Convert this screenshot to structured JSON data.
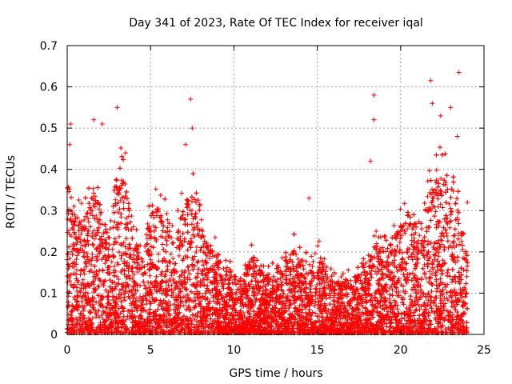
{
  "chart_data": {
    "type": "scatter",
    "title": "Day 341 of 2023, Rate Of TEC Index for receiver iqal",
    "xlabel": "GPS time / hours",
    "ylabel": "ROTI / TECUs",
    "xlim": [
      0,
      25
    ],
    "ylim": [
      0,
      0.7
    ],
    "x_ticks": [
      0,
      5,
      10,
      15,
      20,
      25
    ],
    "y_ticks": [
      0,
      0.1,
      0.2,
      0.3,
      0.4,
      0.5,
      0.6,
      0.7
    ],
    "x_tick_labels": [
      "0",
      "5",
      "10",
      "15",
      "20",
      "25"
    ],
    "y_tick_labels": [
      "0",
      "0.1",
      "0.2",
      "0.3",
      "0.4",
      "0.5",
      "0.6",
      "0.7"
    ],
    "grid": true,
    "marker": "+",
    "color": "#ff0000",
    "envelope": {
      "description_hours": [
        0,
        0.5,
        1,
        1.5,
        2,
        2.5,
        3,
        3.5,
        4,
        4.5,
        5,
        5.5,
        6,
        6.5,
        7,
        7.5,
        8,
        8.5,
        9,
        9.5,
        10,
        10.5,
        11,
        11.5,
        12,
        12.5,
        13,
        13.5,
        14,
        14.5,
        15,
        15.5,
        16,
        16.5,
        17,
        17.5,
        18,
        18.5,
        19,
        19.5,
        20,
        20.5,
        21,
        21.5,
        22,
        22.5,
        23,
        23.5,
        24
      ],
      "typical_max_roti": [
        0.3,
        0.28,
        0.25,
        0.35,
        0.3,
        0.25,
        0.38,
        0.35,
        0.22,
        0.2,
        0.28,
        0.3,
        0.25,
        0.22,
        0.3,
        0.35,
        0.25,
        0.22,
        0.18,
        0.15,
        0.14,
        0.13,
        0.18,
        0.15,
        0.14,
        0.14,
        0.16,
        0.2,
        0.18,
        0.15,
        0.2,
        0.15,
        0.12,
        0.12,
        0.13,
        0.14,
        0.18,
        0.22,
        0.2,
        0.22,
        0.25,
        0.28,
        0.22,
        0.3,
        0.35,
        0.38,
        0.32,
        0.28,
        0.2
      ]
    },
    "notable_points": [
      {
        "x": 0.2,
        "y": 0.51
      },
      {
        "x": 0.15,
        "y": 0.46
      },
      {
        "x": 1.6,
        "y": 0.52
      },
      {
        "x": 2.1,
        "y": 0.51
      },
      {
        "x": 3.0,
        "y": 0.55
      },
      {
        "x": 3.5,
        "y": 0.44
      },
      {
        "x": 7.4,
        "y": 0.57
      },
      {
        "x": 7.5,
        "y": 0.5
      },
      {
        "x": 7.1,
        "y": 0.46
      },
      {
        "x": 14.5,
        "y": 0.33
      },
      {
        "x": 18.4,
        "y": 0.58
      },
      {
        "x": 18.4,
        "y": 0.52
      },
      {
        "x": 18.2,
        "y": 0.42
      },
      {
        "x": 21.8,
        "y": 0.615
      },
      {
        "x": 21.9,
        "y": 0.56
      },
      {
        "x": 22.4,
        "y": 0.53
      },
      {
        "x": 23.0,
        "y": 0.55
      },
      {
        "x": 23.5,
        "y": 0.635
      },
      {
        "x": 23.4,
        "y": 0.48
      },
      {
        "x": 24.0,
        "y": 0.32
      }
    ]
  }
}
